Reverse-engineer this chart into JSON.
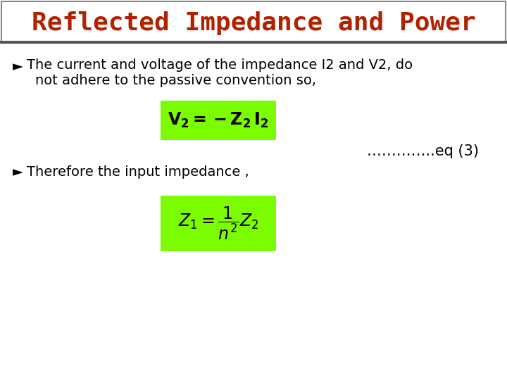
{
  "title": "Reflected Impedance and Power",
  "title_color": "#B22200",
  "title_fontsize": 26,
  "title_font": "monospace",
  "bg_color": "#ffffff",
  "title_box_edge": "#888888",
  "title_box_bg": "#ffffff",
  "bullet1_text1": "The current and voltage of the impedance I2 and V2, do",
  "bullet1_text2": "not adhere to the passive convention so,",
  "bullet2_text": "Therefore the input impedance ,",
  "eq1_latex": "$\\mathbf{V_2 = -Z_2 \\, I_2}$",
  "eq2_latex": "$Z_1 = \\dfrac{1}{n^2} Z_2$",
  "eq_bg_color": "#7CFC00",
  "eq_text_color": "#000000",
  "dots_text": "…………..eq (3)",
  "bullet_symbol": "►",
  "bullet_color": "#000000",
  "text_color": "#000000",
  "text_fontsize": 14,
  "eq1_fontsize": 17,
  "eq2_fontsize": 17
}
